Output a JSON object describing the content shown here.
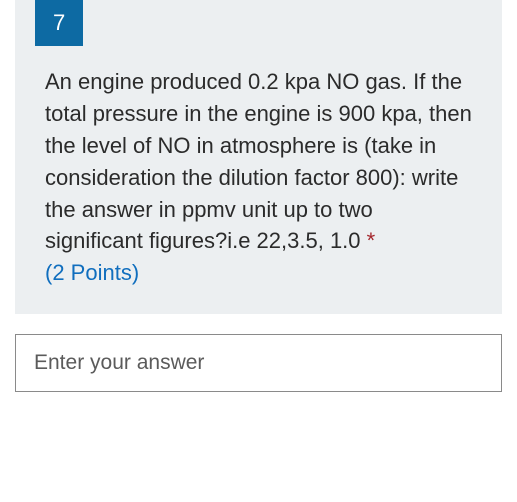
{
  "question": {
    "number": "7",
    "text": "An engine produced 0.2 kpa NO gas. If the total pressure in the engine is 900 kpa, then the level of NO in atmosphere is (take in consideration the dilution factor 800): write the answer in ppmv unit up to two significant figures?i.e 22,3.5, 1.0",
    "required_marker": " *",
    "points": "(2 Points)",
    "text_color": "#2b2b2b",
    "points_color": "#106ebe",
    "required_color": "#a4262c",
    "card_bg": "#eceff1",
    "number_bg": "#0d6aa3",
    "number_color": "#ffffff",
    "fontsize": 22
  },
  "answer": {
    "placeholder": "Enter your answer",
    "value": "",
    "border_color": "#8a8a8a",
    "bg_color": "#ffffff",
    "fontsize": 21
  }
}
